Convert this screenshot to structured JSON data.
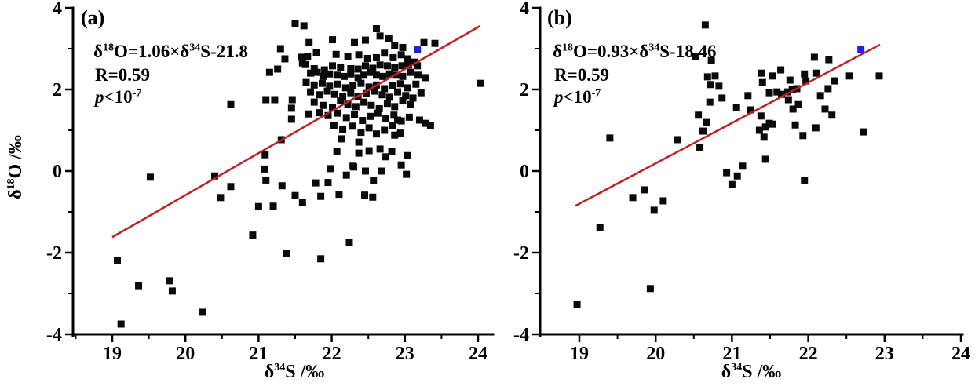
{
  "figure": {
    "background": "#ffffff",
    "point_color": "#0a0a0a",
    "special_point_color": "#2020dd",
    "line_color": "#bf2024",
    "axis_color": "#000000"
  },
  "chart_data": [
    {
      "panel": "(a)",
      "type": "scatter",
      "equation": {
        "d1": "δ",
        "s1": "18",
        "m1": "O=1.06×δ",
        "s2": "34",
        "m2": "S-21.8"
      },
      "r_label": "R=0.59",
      "p_label": {
        "p": "p",
        "lt": "<10",
        "sup": "-7"
      },
      "xlabel": {
        "d": "δ",
        "s": "34",
        "rest": "S /‰"
      },
      "ylabel": {
        "d": "δ",
        "s": "18",
        "rest": "O /‰"
      },
      "xticks": [
        19,
        20,
        21,
        22,
        23,
        24
      ],
      "yticks": [
        -4,
        -2,
        0,
        2,
        4
      ],
      "xlim": [
        18.46,
        24.2
      ],
      "ylim": [
        -4,
        4
      ],
      "grid": false,
      "legend": "none",
      "regression": {
        "x1": 19.0,
        "y1": -1.62,
        "x2": 24.03,
        "y2": 3.56
      },
      "special_point": [
        23.17,
        2.97
      ],
      "points": [
        [
          21.62,
          3.56
        ],
        [
          22.61,
          3.49
        ],
        [
          22.66,
          3.31
        ],
        [
          22.78,
          3.26
        ],
        [
          22.01,
          3.22
        ],
        [
          21.69,
          3.15
        ],
        [
          22.31,
          3.15
        ],
        [
          22.46,
          3.21
        ],
        [
          23.26,
          3.15
        ],
        [
          23.41,
          3.13
        ],
        [
          22.86,
          3.07
        ],
        [
          22.97,
          3.03
        ],
        [
          21.79,
          2.9
        ],
        [
          22.06,
          2.86
        ],
        [
          22.22,
          2.8
        ],
        [
          22.37,
          2.85
        ],
        [
          22.49,
          2.76
        ],
        [
          22.61,
          2.78
        ],
        [
          22.72,
          2.89
        ],
        [
          22.84,
          2.78
        ],
        [
          22.95,
          2.85
        ],
        [
          23.04,
          2.75
        ],
        [
          23.13,
          2.67
        ],
        [
          21.59,
          2.79
        ],
        [
          21.6,
          2.65
        ],
        [
          21.64,
          2.61
        ],
        [
          21.76,
          2.51
        ],
        [
          21.9,
          2.48
        ],
        [
          22.01,
          2.58
        ],
        [
          22.12,
          2.54
        ],
        [
          22.26,
          2.51
        ],
        [
          22.36,
          2.5
        ],
        [
          22.46,
          2.58
        ],
        [
          22.56,
          2.52
        ],
        [
          22.66,
          2.6
        ],
        [
          22.76,
          2.58
        ],
        [
          22.86,
          2.54
        ],
        [
          22.96,
          2.58
        ],
        [
          23.05,
          2.6
        ],
        [
          23.17,
          2.58
        ],
        [
          21.71,
          2.4
        ],
        [
          21.8,
          2.42
        ],
        [
          21.88,
          2.32
        ],
        [
          21.97,
          2.38
        ],
        [
          22.08,
          2.35
        ],
        [
          22.17,
          2.32
        ],
        [
          22.26,
          2.38
        ],
        [
          22.36,
          2.29
        ],
        [
          22.44,
          2.35
        ],
        [
          22.53,
          2.42
        ],
        [
          22.61,
          2.35
        ],
        [
          22.7,
          2.32
        ],
        [
          22.79,
          2.38
        ],
        [
          22.88,
          2.35
        ],
        [
          22.97,
          2.32
        ],
        [
          23.08,
          2.42
        ],
        [
          23.18,
          2.35
        ],
        [
          23.28,
          2.29
        ],
        [
          21.65,
          2.17
        ],
        [
          21.76,
          2.11
        ],
        [
          21.87,
          2.15
        ],
        [
          21.97,
          2.08
        ],
        [
          22.08,
          2.13
        ],
        [
          22.19,
          2.04
        ],
        [
          22.29,
          2.09
        ],
        [
          22.4,
          2.15
        ],
        [
          22.51,
          2.06
        ],
        [
          22.61,
          2.11
        ],
        [
          22.72,
          2.02
        ],
        [
          22.83,
          2.09
        ],
        [
          22.94,
          2.14
        ],
        [
          23.04,
          2.04
        ],
        [
          23.15,
          2.13
        ],
        [
          21.71,
          1.94
        ],
        [
          21.83,
          1.87
        ],
        [
          21.94,
          1.96
        ],
        [
          22.04,
          1.88
        ],
        [
          22.15,
          1.82
        ],
        [
          22.26,
          1.92
        ],
        [
          22.36,
          1.83
        ],
        [
          22.47,
          1.9
        ],
        [
          22.58,
          1.96
        ],
        [
          22.69,
          1.87
        ],
        [
          22.79,
          1.81
        ],
        [
          22.9,
          1.94
        ],
        [
          23.01,
          1.85
        ],
        [
          23.11,
          1.79
        ],
        [
          23.22,
          1.92
        ],
        [
          21.76,
          1.69
        ],
        [
          21.88,
          1.61
        ],
        [
          22.01,
          1.55
        ],
        [
          22.12,
          1.72
        ],
        [
          22.22,
          1.64
        ],
        [
          22.33,
          1.58
        ],
        [
          22.44,
          1.69
        ],
        [
          22.54,
          1.61
        ],
        [
          22.65,
          1.53
        ],
        [
          22.76,
          1.66
        ],
        [
          22.86,
          1.58
        ],
        [
          22.97,
          1.72
        ],
        [
          23.08,
          1.63
        ],
        [
          21.83,
          1.43
        ],
        [
          21.95,
          1.36
        ],
        [
          22.08,
          1.42
        ],
        [
          22.2,
          1.31
        ],
        [
          22.31,
          1.38
        ],
        [
          22.42,
          1.24
        ],
        [
          22.53,
          1.34
        ],
        [
          22.63,
          1.42
        ],
        [
          22.74,
          1.28
        ],
        [
          22.85,
          1.37
        ],
        [
          22.95,
          1.23
        ],
        [
          23.06,
          1.32
        ],
        [
          22.03,
          1.11
        ],
        [
          22.15,
          1.02
        ],
        [
          22.28,
          1.1
        ],
        [
          22.4,
          0.95
        ],
        [
          22.51,
          1.06
        ],
        [
          22.61,
          0.91
        ],
        [
          22.72,
          1.0
        ],
        [
          22.83,
          1.11
        ],
        [
          22.94,
          0.93
        ],
        [
          22.13,
          0.79
        ],
        [
          19.07,
          -2.19
        ],
        [
          19.36,
          -2.81
        ],
        [
          19.78,
          -2.69
        ],
        [
          19.82,
          -2.94
        ],
        [
          20.23,
          -3.46
        ],
        [
          19.12,
          -3.75
        ],
        [
          20.92,
          -1.57
        ],
        [
          21.38,
          -2.01
        ],
        [
          21.85,
          -2.15
        ],
        [
          22.24,
          -1.74
        ],
        [
          19.52,
          -0.15
        ],
        [
          20.4,
          -0.12
        ],
        [
          20.62,
          -0.38
        ],
        [
          20.48,
          -0.65
        ],
        [
          21.0,
          -0.87
        ],
        [
          21.1,
          -0.22
        ],
        [
          21.32,
          -0.36
        ],
        [
          21.5,
          -0.6
        ],
        [
          21.6,
          -0.76
        ],
        [
          21.2,
          -0.86
        ],
        [
          21.85,
          -0.62
        ],
        [
          22.1,
          -0.57
        ],
        [
          22.45,
          -0.59
        ],
        [
          22.56,
          -0.64
        ],
        [
          22.57,
          -0.24
        ],
        [
          22.2,
          -0.1
        ],
        [
          22.3,
          0.1
        ],
        [
          22.46,
          0.0
        ],
        [
          21.08,
          0.05
        ],
        [
          23.02,
          -0.08
        ],
        [
          22.95,
          0.15
        ],
        [
          21.09,
          0.4
        ],
        [
          21.95,
          -0.28
        ],
        [
          21.31,
          0.77
        ],
        [
          20.62,
          1.63
        ],
        [
          21.1,
          1.75
        ],
        [
          21.22,
          1.75
        ],
        [
          21.46,
          1.75
        ],
        [
          21.45,
          1.54
        ],
        [
          21.45,
          1.27
        ],
        [
          21.68,
          1.4
        ],
        [
          22.07,
          0.48
        ],
        [
          22.29,
          0.12
        ],
        [
          22.51,
          0.5
        ],
        [
          22.74,
          0.35
        ],
        [
          22.68,
          0.0
        ],
        [
          21.98,
          0.06
        ],
        [
          21.78,
          -0.29
        ],
        [
          23.2,
          1.25
        ],
        [
          23.28,
          1.17
        ],
        [
          23.35,
          1.12
        ],
        [
          22.9,
          1.25
        ],
        [
          22.86,
          0.88
        ],
        [
          22.66,
          0.54
        ],
        [
          22.82,
          0.48
        ],
        [
          23.04,
          0.38
        ],
        [
          22.37,
          0.71
        ],
        [
          22.37,
          0.44
        ],
        [
          21.5,
          3.62
        ],
        [
          21.3,
          3.0
        ],
        [
          21.36,
          2.75
        ],
        [
          21.67,
          2.81
        ],
        [
          21.15,
          2.42
        ],
        [
          21.26,
          2.5
        ],
        [
          24.03,
          2.15
        ]
      ]
    },
    {
      "panel": "(b)",
      "type": "scatter",
      "equation": {
        "d1": "δ",
        "s1": "18",
        "m1": "O=0.93×δ",
        "s2": "34",
        "m2": "S-18.46"
      },
      "r_label": "R=0.59",
      "p_label": {
        "p": "p",
        "lt": "<10",
        "sup": "-7"
      },
      "xlabel": {
        "d": "δ",
        "s": "34",
        "rest": "S /‰"
      },
      "ylabel": null,
      "xticks": [
        19,
        20,
        21,
        22,
        23,
        24
      ],
      "yticks": [
        -4,
        -2,
        0,
        2,
        4
      ],
      "xlim": [
        18.49,
        24.02
      ],
      "ylim": [
        -4,
        4
      ],
      "grid": false,
      "legend": "none",
      "regression": {
        "x1": 18.95,
        "y1": -0.85,
        "x2": 22.94,
        "y2": 3.1
      },
      "special_point": [
        22.69,
        2.98
      ],
      "points": [
        [
          20.65,
          3.58
        ],
        [
          20.52,
          2.81
        ],
        [
          20.73,
          2.71
        ],
        [
          20.68,
          2.31
        ],
        [
          20.78,
          2.33
        ],
        [
          20.72,
          2.12
        ],
        [
          20.83,
          2.08
        ],
        [
          20.71,
          1.69
        ],
        [
          20.87,
          1.79
        ],
        [
          20.56,
          1.37
        ],
        [
          20.67,
          1.19
        ],
        [
          20.62,
          0.98
        ],
        [
          20.58,
          0.58
        ],
        [
          22.08,
          2.79
        ],
        [
          22.27,
          2.73
        ],
        [
          21.39,
          2.4
        ],
        [
          21.53,
          2.33
        ],
        [
          21.64,
          2.48
        ],
        [
          21.95,
          2.38
        ],
        [
          22.11,
          2.4
        ],
        [
          21.4,
          2.17
        ],
        [
          21.76,
          2.23
        ],
        [
          21.97,
          2.21
        ],
        [
          21.49,
          1.92
        ],
        [
          21.59,
          1.94
        ],
        [
          21.65,
          1.88
        ],
        [
          21.73,
          1.94
        ],
        [
          21.79,
          2.0
        ],
        [
          21.85,
          2.02
        ],
        [
          21.74,
          1.75
        ],
        [
          21.87,
          1.63
        ],
        [
          22.16,
          1.85
        ],
        [
          22.26,
          2.02
        ],
        [
          22.34,
          2.21
        ],
        [
          22.54,
          2.33
        ],
        [
          21.21,
          1.85
        ],
        [
          21.24,
          1.5
        ],
        [
          21.38,
          1.35
        ],
        [
          21.49,
          1.17
        ],
        [
          21.44,
          1.08
        ],
        [
          21.53,
          1.15
        ],
        [
          21.36,
          1.0
        ],
        [
          21.8,
          1.52
        ],
        [
          21.83,
          1.13
        ],
        [
          22.22,
          1.52
        ],
        [
          22.31,
          1.37
        ],
        [
          22.1,
          1.06
        ],
        [
          21.93,
          0.87
        ],
        [
          21.42,
          0.83
        ],
        [
          22.72,
          0.96
        ],
        [
          21.06,
          1.56
        ],
        [
          22.93,
          2.33
        ],
        [
          21.44,
          0.29
        ],
        [
          20.93,
          -0.04
        ],
        [
          21.07,
          -0.12
        ],
        [
          21.14,
          0.12
        ],
        [
          21.0,
          -0.33
        ],
        [
          21.95,
          -0.23
        ],
        [
          20.29,
          0.77
        ],
        [
          19.4,
          0.81
        ],
        [
          19.7,
          -0.65
        ],
        [
          19.85,
          -0.46
        ],
        [
          19.98,
          -0.96
        ],
        [
          20.1,
          -0.73
        ],
        [
          19.27,
          -1.38
        ],
        [
          19.93,
          -2.88
        ],
        [
          18.97,
          -3.27
        ]
      ]
    }
  ]
}
